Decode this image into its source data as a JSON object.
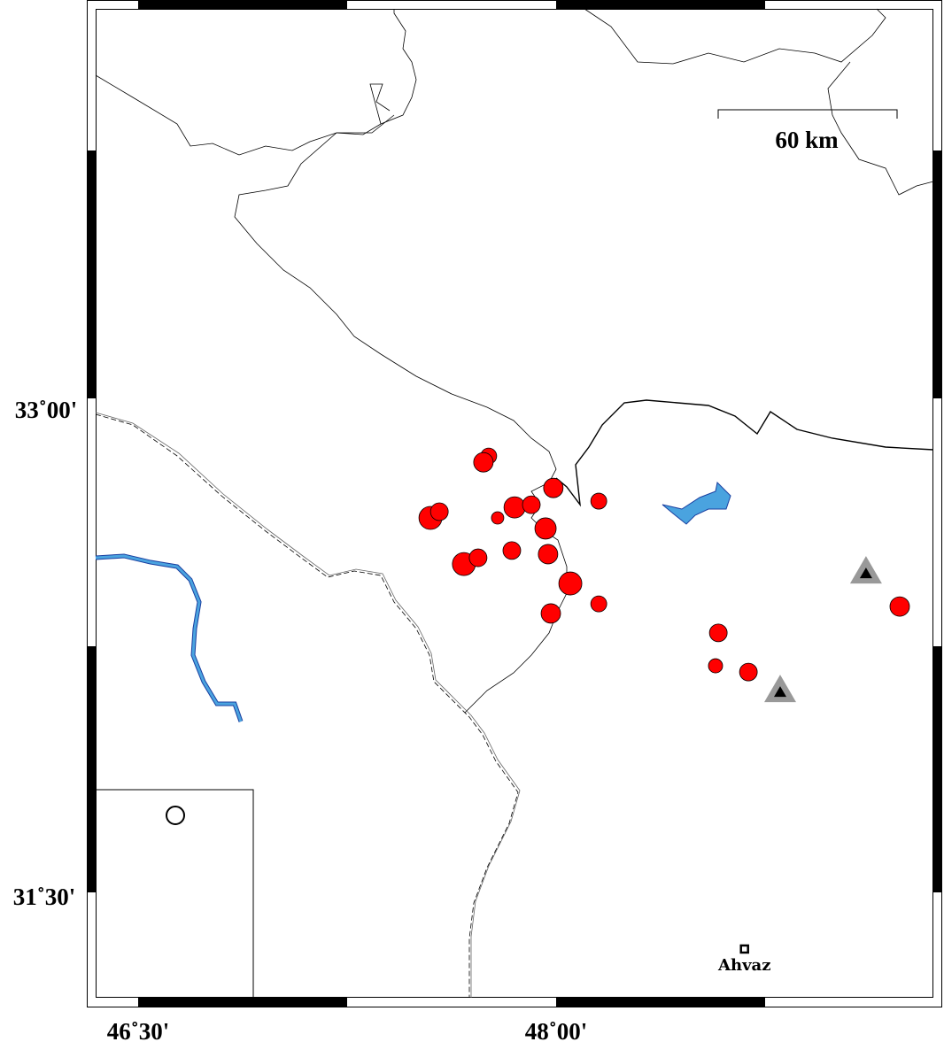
{
  "map": {
    "x_ticks": [
      {
        "lon": 46.5,
        "label": "46˚30'"
      },
      {
        "lon": 48.0,
        "label": "48˚00'"
      }
    ],
    "y_ticks": [
      {
        "lat": 33.0,
        "label": "33˚00'"
      },
      {
        "lat": 31.5,
        "label": "31˚30'"
      }
    ],
    "scale_bar": {
      "label": "60 km"
    },
    "colors": {
      "event": "#ff0000",
      "water": "#4aa3df",
      "river_edge": "#1a3fa0",
      "station": "#999999"
    },
    "events": [
      {
        "lon": 47.758,
        "lat": 32.825,
        "size_class": 3
      },
      {
        "lon": 47.739,
        "lat": 32.806,
        "size_class": 5
      },
      {
        "lon": 47.549,
        "lat": 32.637,
        "size_class": 7
      },
      {
        "lon": 47.581,
        "lat": 32.656,
        "size_class": 4
      },
      {
        "lon": 47.669,
        "lat": 32.497,
        "size_class": 7
      },
      {
        "lon": 47.72,
        "lat": 32.516,
        "size_class": 4
      },
      {
        "lon": 47.79,
        "lat": 32.637,
        "size_class": 1
      },
      {
        "lon": 47.851,
        "lat": 32.669,
        "size_class": 6
      },
      {
        "lon": 47.911,
        "lat": 32.677,
        "size_class": 4
      },
      {
        "lon": 47.99,
        "lat": 32.728,
        "size_class": 5
      },
      {
        "lon": 47.962,
        "lat": 32.605,
        "size_class": 6
      },
      {
        "lon": 47.841,
        "lat": 32.538,
        "size_class": 4
      },
      {
        "lon": 47.971,
        "lat": 32.527,
        "size_class": 5
      },
      {
        "lon": 48.051,
        "lat": 32.438,
        "size_class": 7
      },
      {
        "lon": 48.153,
        "lat": 32.688,
        "size_class": 3
      },
      {
        "lon": 48.153,
        "lat": 32.376,
        "size_class": 3
      },
      {
        "lon": 47.981,
        "lat": 32.347,
        "size_class": 5
      },
      {
        "lon": 48.582,
        "lat": 32.288,
        "size_class": 4
      },
      {
        "lon": 48.572,
        "lat": 32.188,
        "size_class": 2
      },
      {
        "lon": 48.69,
        "lat": 32.169,
        "size_class": 4
      },
      {
        "lon": 49.233,
        "lat": 32.368,
        "size_class": 5
      }
    ],
    "stations": [
      {
        "lon": 49.112,
        "lat": 32.47
      },
      {
        "lon": 48.804,
        "lat": 32.11
      }
    ],
    "cities": [
      {
        "name": "Ahvaz",
        "lon": 48.676,
        "lat": 31.328
      }
    ]
  }
}
